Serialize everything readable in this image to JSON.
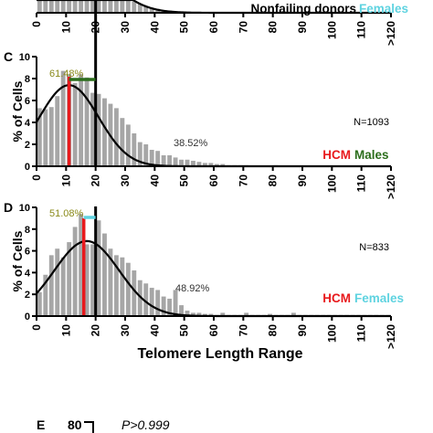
{
  "chart_data": [
    {
      "panel": "B",
      "type": "bar",
      "visible_partial": true,
      "legend": {
        "group": "Nonfailing donors",
        "sex": "Females"
      },
      "x_tick_labels": [
        "0",
        "10",
        "20",
        "30",
        "40",
        "50",
        "60",
        "70",
        "80",
        "90",
        "100",
        "110",
        ">120"
      ],
      "xlim": [
        0,
        120
      ],
      "bin_width": 2,
      "values": [
        2.0,
        3.0,
        3.8,
        4.4,
        4.8,
        5.0,
        5.0,
        4.8,
        4.5,
        4.1,
        3.6,
        3.1,
        2.6,
        2.1,
        1.7,
        1.3,
        1.0,
        0.8,
        0.6,
        0.45,
        0.35,
        0.25,
        0.2,
        0.15,
        0.12,
        0.1,
        0.08,
        0.06,
        0.05,
        0.04
      ],
      "fit_curve": {
        "mean": 12,
        "sd": 12,
        "peak": 5.0
      },
      "ylim_visible": [
        0,
        1.0
      ]
    },
    {
      "panel": "C",
      "type": "bar",
      "legend": {
        "group": "HCM",
        "sex": "Males"
      },
      "ylabel": "% of Cells",
      "y_tick_labels": [
        "0",
        "2",
        "4",
        "6",
        "8",
        "10"
      ],
      "ylim": [
        0,
        10
      ],
      "x_tick_labels": [
        "0",
        "10",
        "20",
        "30",
        "40",
        "50",
        "60",
        "70",
        "80",
        "90",
        "100",
        "110",
        ">120"
      ],
      "xlim": [
        0,
        120
      ],
      "bin_width": 2,
      "values": [
        5.3,
        5.2,
        5.4,
        6.4,
        8.7,
        8.4,
        7.6,
        8.4,
        8.1,
        6.7,
        6.6,
        6.2,
        5.7,
        5.3,
        4.4,
        3.8,
        3.0,
        2.2,
        2.0,
        1.5,
        1.4,
        1.0,
        1.0,
        0.8,
        0.6,
        0.6,
        0.5,
        0.4,
        0.3,
        0.3,
        0.2,
        0.2,
        0.1,
        0.1,
        0.1,
        0.1,
        0.05,
        0.05,
        0.05,
        0.05,
        0.1,
        0.05,
        0.05,
        0.05,
        0.05,
        0.05,
        0.05,
        0.05,
        0.05,
        0.05,
        0.05,
        0.05,
        0.05,
        0.05,
        0.05,
        0.05,
        0.05,
        0.05,
        0.05,
        0.05
      ],
      "fit_curve": {
        "mean": 11,
        "sd": 10,
        "peak": 7.4
      },
      "threshold_line": 20,
      "median_line": 11,
      "bracket": {
        "from": 11,
        "to": 20
      },
      "left_percent": "61.48%",
      "right_percent": "38.52%",
      "n_label": "N=1093",
      "colors": {
        "bars": "#a6a6a6",
        "median": "#e8191c",
        "bracket": "#2c6e1c",
        "left_percent": "#8a8a1a",
        "males": "#2c6e1c",
        "hcm": "#e8191c"
      }
    },
    {
      "panel": "D",
      "type": "bar",
      "legend": {
        "group": "HCM",
        "sex": "Females"
      },
      "ylabel": "% of Cells",
      "y_tick_labels": [
        "0",
        "2",
        "4",
        "6",
        "8",
        "10"
      ],
      "ylim": [
        0,
        10
      ],
      "x_tick_labels": [
        "0",
        "10",
        "20",
        "30",
        "40",
        "50",
        "60",
        "70",
        "80",
        "90",
        "100",
        "110",
        ">120"
      ],
      "xlabel": "Telomere Length Range",
      "xlim": [
        0,
        120
      ],
      "bin_width": 2,
      "values": [
        2.2,
        3.8,
        5.6,
        6.2,
        5.4,
        6.8,
        8.2,
        9.4,
        6.6,
        6.6,
        8.8,
        7.6,
        6.2,
        5.6,
        5.4,
        4.9,
        4.2,
        3.3,
        3.0,
        2.6,
        2.4,
        1.8,
        1.6,
        2.4,
        1.0,
        0.5,
        0.3,
        0.3,
        0.2,
        0.2,
        0.1,
        0.3,
        0.1,
        0.1,
        0.1,
        0.3,
        0.1,
        0.1,
        0.1,
        0.2,
        0.1,
        0.1,
        0.1,
        0.3,
        0.1,
        0.1,
        0.1,
        0.1,
        0.1,
        0.1,
        0.1,
        0.1,
        0.1,
        0.1,
        0.1,
        0.1,
        0.1,
        0.1,
        0.1,
        0.1
      ],
      "fit_curve": {
        "mean": 17,
        "sd": 11,
        "peak": 6.9
      },
      "threshold_line": 20,
      "median_line": 16,
      "bracket": {
        "from": 16,
        "to": 20
      },
      "left_percent": "51.08%",
      "right_percent": "48.92%",
      "n_label": "N=833",
      "colors": {
        "bars": "#a6a6a6",
        "median": "#e8191c",
        "bracket": "#5fd3e0",
        "left_percent": "#8a8a1a",
        "females": "#5fd3e0",
        "hcm": "#e8191c"
      }
    },
    {
      "panel": "E",
      "type": "bar",
      "visible_partial": true,
      "y_top_tick": "80",
      "p_value": "P>0.999"
    }
  ]
}
